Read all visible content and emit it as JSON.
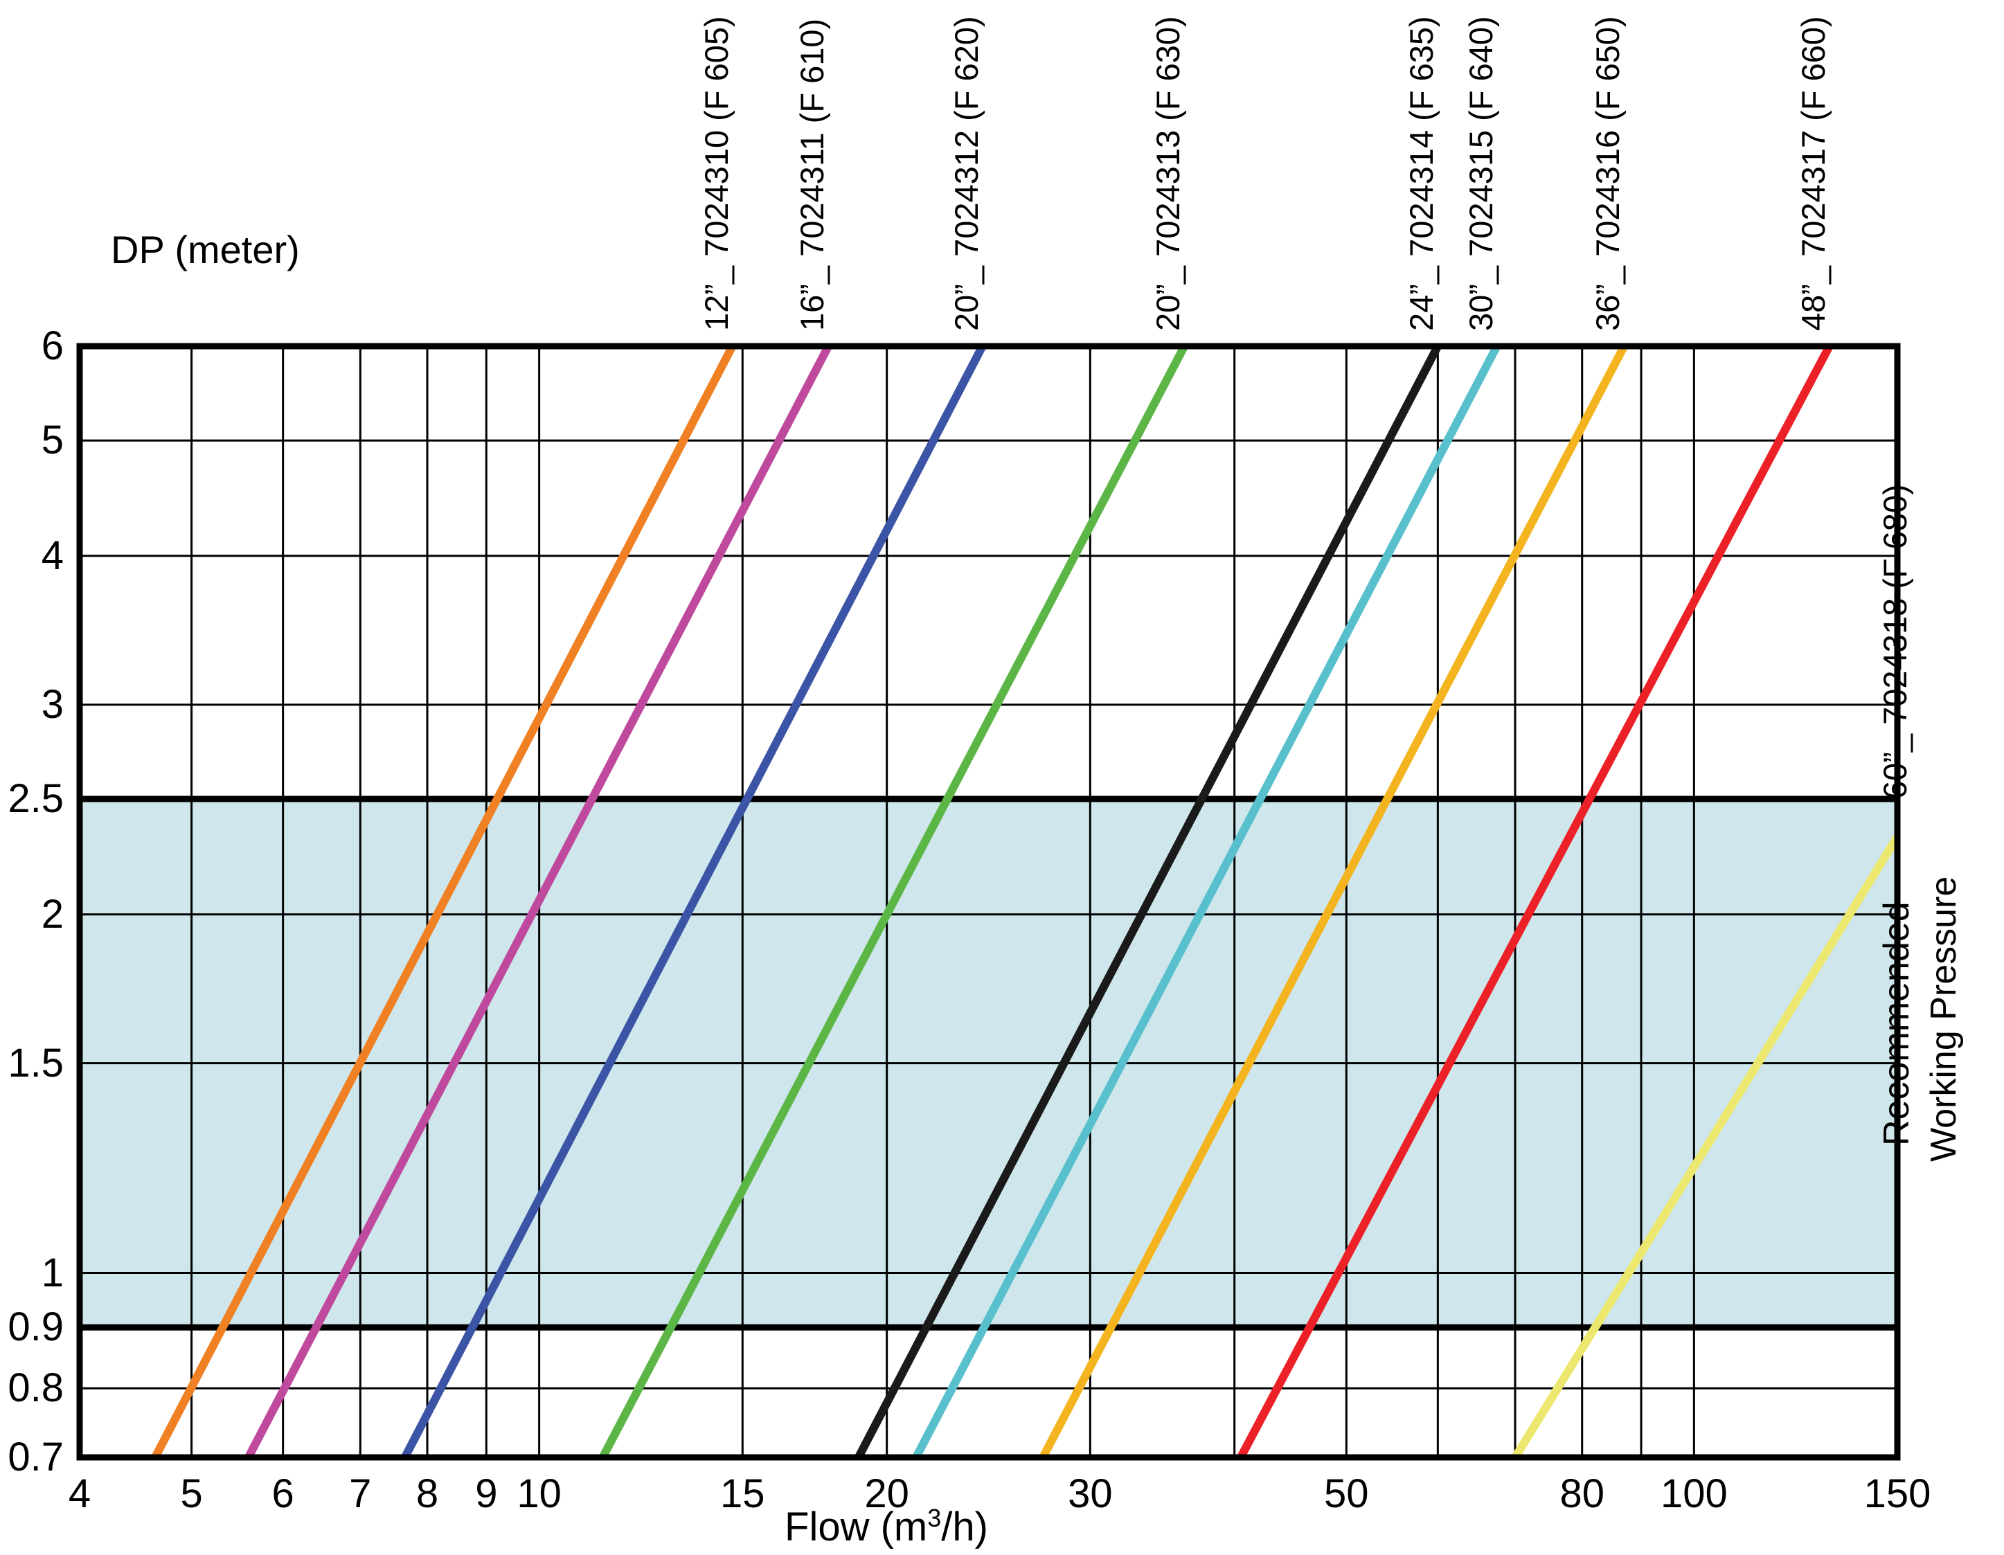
{
  "page": {
    "background": "#ffffff"
  },
  "chart_data": {
    "type": "line",
    "title": "",
    "xlabel": "Flow (m3/h)",
    "xlabel_parts": {
      "pre": "Flow (m",
      "sup": "3",
      "post": "/h)"
    },
    "ylabel": "DP (meter)",
    "x_scale": "log",
    "y_scale": "log",
    "xlim": [
      4,
      150
    ],
    "ylim": [
      0.7,
      6
    ],
    "grid": true,
    "grid_color": "#000000",
    "x_gridlines": [
      4,
      5,
      6,
      7,
      8,
      9,
      10,
      15,
      20,
      30,
      40,
      50,
      60,
      70,
      80,
      90,
      100,
      150
    ],
    "x_tick_values": [
      4,
      5,
      6,
      7,
      8,
      9,
      10,
      15,
      20,
      30,
      50,
      80,
      100,
      150
    ],
    "x_tick_labels": [
      "4",
      "5",
      "6",
      "7",
      "8",
      "9",
      "10",
      "15",
      "20",
      "30",
      "50",
      "80",
      "100",
      "150"
    ],
    "y_gridlines": [
      6,
      5,
      4,
      3,
      2.5,
      2,
      1.5,
      1,
      0.9,
      0.8,
      0.7
    ],
    "y_tick_labels": [
      "6",
      "5",
      "4",
      "3",
      "2.5",
      "2",
      "1.5",
      "1",
      "0.9",
      "0.8",
      "0.7"
    ],
    "band": {
      "from": 0.9,
      "to": 2.5,
      "fill": "#cfe7ec",
      "labels": [
        "Recommended",
        "Working Pressure"
      ]
    },
    "series": [
      {
        "label": "12”_ 7024310 (F 605)",
        "color": "#ef8023",
        "points": [
          [
            4.65,
            0.7
          ],
          [
            14.7,
            6
          ]
        ]
      },
      {
        "label": "16”_ 7024311 (F 610)",
        "color": "#bf4a9d",
        "points": [
          [
            5.6,
            0.7
          ],
          [
            17.8,
            6
          ]
        ]
      },
      {
        "label": "20”_ 7024312 (F 620)",
        "color": "#3b54a5",
        "points": [
          [
            7.65,
            0.7
          ],
          [
            24.2,
            6
          ]
        ]
      },
      {
        "label": "20”_ 7024313 (F 630)",
        "color": "#5cb646",
        "points": [
          [
            11.35,
            0.7
          ],
          [
            36.2,
            6
          ]
        ]
      },
      {
        "label": "24”_ 7024314 (F 635)",
        "color": "#1a1a1a",
        "points": [
          [
            18.9,
            0.7
          ],
          [
            60,
            6
          ]
        ]
      },
      {
        "label": "30”_ 7024315 (F 640)",
        "color": "#58c0cc",
        "points": [
          [
            21.2,
            0.7
          ],
          [
            67.5,
            6
          ]
        ]
      },
      {
        "label": "36”_ 7024316 (F 650)",
        "color": "#f4b41f",
        "points": [
          [
            27.3,
            0.7
          ],
          [
            87,
            6
          ]
        ]
      },
      {
        "label": "48”_ 7024317 (F 660)",
        "color": "#ec2027",
        "points": [
          [
            40.5,
            0.7
          ],
          [
            131,
            6
          ]
        ]
      },
      {
        "label": "60”_ 7024318 (F 680)",
        "color": "#ece76e",
        "points": [
          [
            70,
            0.7
          ],
          [
            274,
            6
          ]
        ]
      }
    ]
  }
}
